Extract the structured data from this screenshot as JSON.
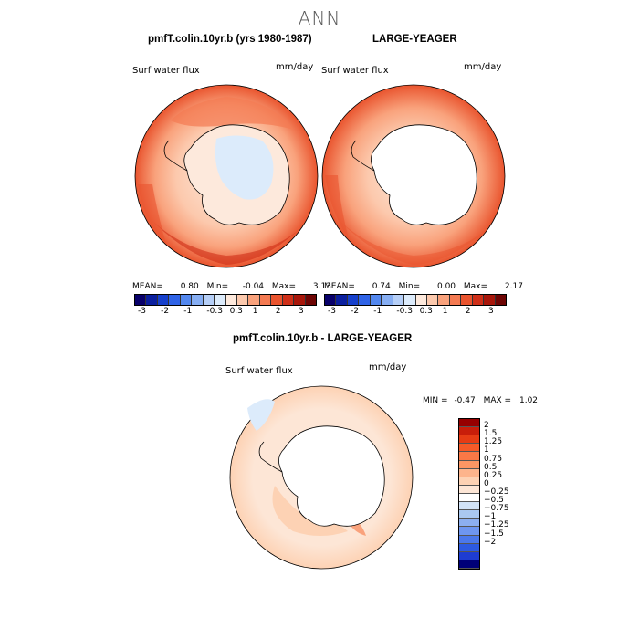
{
  "title": "ANN",
  "panel_left": {
    "title": "pmfT.colin.10yr.b (yrs 1980-1987)",
    "variable": "Surf water flux",
    "units": "mm/day",
    "stats": {
      "mean_label": "MEAN=",
      "mean": "0.80",
      "min_label": "Min=",
      "min": "-0.04",
      "max_label": "Max=",
      "max": "3.13"
    }
  },
  "panel_right": {
    "title": "LARGE-YEAGER",
    "variable": "Surf water flux",
    "units": "mm/day",
    "stats": {
      "mean_label": "MEAN=",
      "mean": "0.74",
      "min_label": "Min=",
      "min": "0.00",
      "max_label": "Max=",
      "max": "2.17"
    }
  },
  "colorbar_top": {
    "colors": [
      "#08006a",
      "#0b1f9e",
      "#1640cc",
      "#2f63e6",
      "#5388ef",
      "#86aef3",
      "#b6cff7",
      "#dcebfb",
      "#fde9dc",
      "#fcc9ad",
      "#f9a27c",
      "#f47a52",
      "#e9542e",
      "#cf2f18",
      "#a8170b",
      "#6e0504"
    ],
    "tick_labels": [
      "-3",
      "-2",
      "-1",
      "-0.3",
      "0.3",
      "1",
      "2",
      "3"
    ]
  },
  "panel_diff": {
    "title": "pmfT.colin.10yr.b - LARGE-YEAGER",
    "variable": "Surf water flux",
    "units": "mm/day",
    "min_label": "MIN =",
    "min": "-0.47",
    "max_label": "MAX =",
    "max": "1.02"
  },
  "colorbar_diff": {
    "colors": [
      "#960000",
      "#c81e0a",
      "#e63c14",
      "#f55a28",
      "#fa7846",
      "#fc9664",
      "#fdb48c",
      "#fdd2b4",
      "#fde6d6",
      "#ffffff",
      "#d2e3f7",
      "#aac8f0",
      "#8caff0",
      "#6e96f0",
      "#4b78eb",
      "#2d5ae1",
      "#1e3cd2",
      "#000078"
    ],
    "labels": [
      "2",
      "1.5",
      "1.25",
      "1",
      "0.75",
      "0.5",
      "0.25",
      "0",
      "−0.25",
      "−0.5",
      "−0.75",
      "−1",
      "−1.25",
      "−1.5",
      "−2"
    ]
  }
}
